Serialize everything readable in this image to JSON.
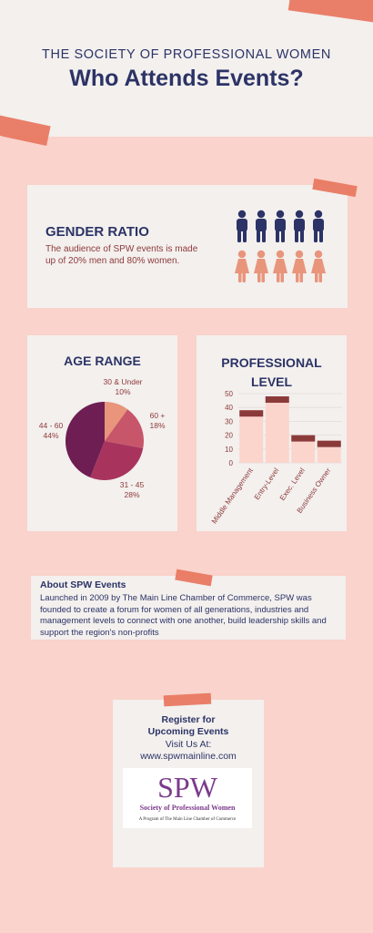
{
  "header": {
    "subtitle": "THE SOCIETY OF PROFESSIONAL WOMEN",
    "title": "Who Attends Events?"
  },
  "gender": {
    "heading": "GENDER RATIO",
    "text": "The audience of SPW events is made up of 20% men and 80% women.",
    "colors": {
      "men": "#2c3366",
      "women": "#e8957c"
    }
  },
  "age": {
    "heading": "AGE RANGE",
    "labels": [
      {
        "line1": "30 & Under",
        "line2": "10%"
      },
      {
        "line1": "60 +",
        "line2": "18%"
      },
      {
        "line1": "31 - 45",
        "line2": "28%"
      },
      {
        "line1": "44 - 60",
        "line2": "44%"
      }
    ]
  },
  "professional": {
    "heading_line1": "PROFESSIONAL",
    "heading_line2": "LEVEL"
  },
  "chart_data": [
    {
      "type": "pie",
      "title": "AGE RANGE",
      "categories": [
        "30 & Under",
        "60 +",
        "31 - 45",
        "44 - 60"
      ],
      "values": [
        10,
        18,
        28,
        44
      ],
      "colors": [
        "#e8957c",
        "#c8566a",
        "#a8345e",
        "#6e1e52"
      ]
    },
    {
      "type": "bar",
      "title": "PROFESSIONAL LEVEL",
      "categories": [
        "Middle Management",
        "Entry-Level",
        "Exec. Level",
        "Business Owner"
      ],
      "values": [
        38,
        48,
        20,
        16
      ],
      "ylim": [
        0,
        50
      ],
      "yticks": [
        0,
        10,
        20,
        30,
        40,
        50
      ],
      "colors": {
        "bar": "#fbd5cc",
        "cap": "#8b3a3a"
      }
    }
  ],
  "about": {
    "title": "About SPW Events",
    "text": "Launched in 2009 by The Main Line Chamber of Commerce, SPW was founded to create a forum for women of all generations, industries and management levels to connect with one another, build leadership skills and support the region's non-profits"
  },
  "register": {
    "line1": "Register for",
    "line2": "Upcoming Events",
    "line3": "Visit Us At:",
    "url": "www.spwmainline.com"
  },
  "logo": {
    "mark": "SPW",
    "name": "Society of Professional Women",
    "sub": "A Program of The Main Line Chamber of Commerce"
  }
}
